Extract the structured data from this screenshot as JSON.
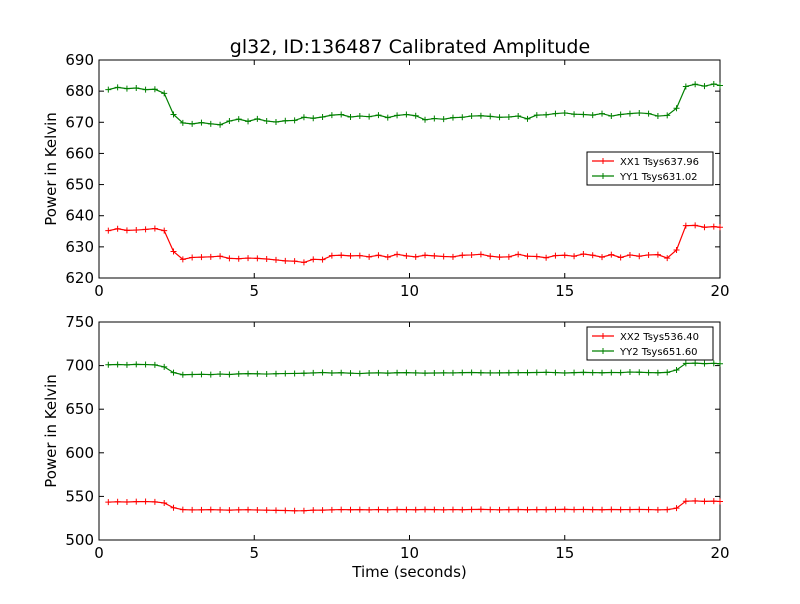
{
  "figure": {
    "title": "gl32, ID:136487 Calibrated Amplitude"
  },
  "chart_data": [
    {
      "type": "line",
      "title": "gl32, ID:136487 Calibrated Amplitude",
      "xlabel": "",
      "ylabel": "Power in Kelvin",
      "xlim": [
        0,
        20
      ],
      "ylim": [
        620,
        690
      ],
      "xticks": [
        0,
        5,
        10,
        15,
        20
      ],
      "yticks": [
        620,
        630,
        640,
        650,
        660,
        670,
        680,
        690
      ],
      "grid": false,
      "legend_position": "center-right",
      "x": [
        0.3,
        0.6,
        0.9,
        1.2,
        1.5,
        1.8,
        2.1,
        2.4,
        2.7,
        3.0,
        3.3,
        3.6,
        3.9,
        4.2,
        4.5,
        4.8,
        5.1,
        5.4,
        5.7,
        6.0,
        6.3,
        6.6,
        6.9,
        7.2,
        7.5,
        7.8,
        8.1,
        8.4,
        8.7,
        9.0,
        9.3,
        9.6,
        9.9,
        10.2,
        10.5,
        10.8,
        11.1,
        11.4,
        11.7,
        12.0,
        12.3,
        12.6,
        12.9,
        13.2,
        13.5,
        13.8,
        14.1,
        14.4,
        14.7,
        15.0,
        15.3,
        15.6,
        15.9,
        16.2,
        16.5,
        16.8,
        17.1,
        17.4,
        17.7,
        18.0,
        18.3,
        18.6,
        18.9,
        19.2,
        19.5,
        19.8,
        20.0
      ],
      "series": [
        {
          "name": "XX1 Tsys637.96",
          "color": "#ff0000",
          "values": [
            635.2,
            635.8,
            635.3,
            635.4,
            635.6,
            635.9,
            635.2,
            628.5,
            626.0,
            626.6,
            626.7,
            626.8,
            627.0,
            626.3,
            626.2,
            626.4,
            626.3,
            626.1,
            625.8,
            625.5,
            625.4,
            625.0,
            626.0,
            625.9,
            627.2,
            627.3,
            627.1,
            627.2,
            626.8,
            627.3,
            626.7,
            627.6,
            627.1,
            626.8,
            627.3,
            627.1,
            626.9,
            626.8,
            627.3,
            627.4,
            627.6,
            627.0,
            626.7,
            626.8,
            627.6,
            627.0,
            626.9,
            626.5,
            627.2,
            627.3,
            627.0,
            627.7,
            627.3,
            626.7,
            627.5,
            626.6,
            627.4,
            627.0,
            627.4,
            627.5,
            626.4,
            629.0,
            636.8,
            636.9,
            636.3,
            636.5,
            636.3
          ]
        },
        {
          "name": "YY1 Tsys631.02",
          "color": "#008000",
          "values": [
            680.5,
            681.2,
            680.8,
            681.0,
            680.5,
            680.6,
            679.3,
            672.5,
            669.8,
            669.5,
            669.9,
            669.5,
            669.2,
            670.4,
            671.0,
            670.3,
            671.1,
            670.4,
            670.1,
            670.5,
            670.6,
            671.6,
            671.3,
            671.7,
            672.3,
            672.5,
            671.7,
            672.0,
            671.8,
            672.3,
            671.5,
            672.2,
            672.5,
            672.1,
            670.8,
            671.2,
            671.0,
            671.5,
            671.6,
            672.0,
            672.1,
            671.9,
            671.6,
            671.7,
            672.0,
            671.1,
            672.3,
            672.4,
            672.8,
            673.0,
            672.6,
            672.5,
            672.3,
            672.8,
            672.0,
            672.5,
            672.8,
            673.0,
            672.8,
            672.0,
            672.2,
            674.5,
            681.5,
            682.2,
            681.6,
            682.3,
            681.8
          ]
        }
      ]
    },
    {
      "type": "line",
      "title": "",
      "xlabel": "Time (seconds)",
      "ylabel": "Power in Kelvin",
      "xlim": [
        0,
        20
      ],
      "ylim": [
        500,
        750
      ],
      "xticks": [
        0,
        5,
        10,
        15,
        20
      ],
      "yticks": [
        500,
        550,
        600,
        650,
        700,
        750
      ],
      "grid": false,
      "legend_position": "top-right",
      "x": [
        0.3,
        0.6,
        0.9,
        1.2,
        1.5,
        1.8,
        2.1,
        2.4,
        2.7,
        3.0,
        3.3,
        3.6,
        3.9,
        4.2,
        4.5,
        4.8,
        5.1,
        5.4,
        5.7,
        6.0,
        6.3,
        6.6,
        6.9,
        7.2,
        7.5,
        7.8,
        8.1,
        8.4,
        8.7,
        9.0,
        9.3,
        9.6,
        9.9,
        10.2,
        10.5,
        10.8,
        11.1,
        11.4,
        11.7,
        12.0,
        12.3,
        12.6,
        12.9,
        13.2,
        13.5,
        13.8,
        14.1,
        14.4,
        14.7,
        15.0,
        15.3,
        15.6,
        15.9,
        16.2,
        16.5,
        16.8,
        17.1,
        17.4,
        17.7,
        18.0,
        18.3,
        18.6,
        18.9,
        19.2,
        19.5,
        19.8,
        20.0
      ],
      "series": [
        {
          "name": "XX2 Tsys536.40",
          "color": "#ff0000",
          "values": [
            543.5,
            543.8,
            543.6,
            544.0,
            544.1,
            543.7,
            542.5,
            537.0,
            534.8,
            534.5,
            534.6,
            534.8,
            534.5,
            534.3,
            534.6,
            534.7,
            534.4,
            534.2,
            534.0,
            533.8,
            533.5,
            533.6,
            534.2,
            534.3,
            534.6,
            534.9,
            534.7,
            534.8,
            534.6,
            534.9,
            534.6,
            535.0,
            534.8,
            534.7,
            535.0,
            534.8,
            534.6,
            534.9,
            534.7,
            535.0,
            535.1,
            534.9,
            534.6,
            534.8,
            535.0,
            534.7,
            534.9,
            534.8,
            535.0,
            535.1,
            534.9,
            535.0,
            534.8,
            534.7,
            535.0,
            534.8,
            534.9,
            535.0,
            534.9,
            534.6,
            534.8,
            536.5,
            544.5,
            544.8,
            544.3,
            544.6,
            544.2
          ]
        },
        {
          "name": "YY2 Tsys651.60",
          "color": "#008000",
          "values": [
            701.0,
            701.3,
            700.9,
            701.4,
            701.2,
            700.8,
            698.5,
            692.0,
            689.5,
            689.8,
            690.0,
            689.7,
            690.3,
            689.8,
            690.5,
            690.8,
            690.6,
            690.3,
            690.7,
            690.9,
            691.0,
            691.2,
            691.6,
            692.1,
            691.5,
            691.8,
            691.3,
            690.9,
            691.5,
            691.7,
            691.4,
            691.8,
            691.9,
            691.6,
            691.4,
            691.5,
            691.7,
            691.6,
            691.9,
            692.1,
            691.8,
            691.6,
            691.7,
            691.8,
            692.0,
            691.9,
            692.1,
            692.3,
            692.0,
            691.5,
            691.9,
            692.2,
            692.0,
            691.8,
            692.1,
            692.0,
            692.6,
            692.4,
            692.0,
            691.8,
            692.2,
            695.0,
            702.5,
            702.8,
            702.3,
            702.6,
            702.1
          ]
        }
      ]
    }
  ]
}
